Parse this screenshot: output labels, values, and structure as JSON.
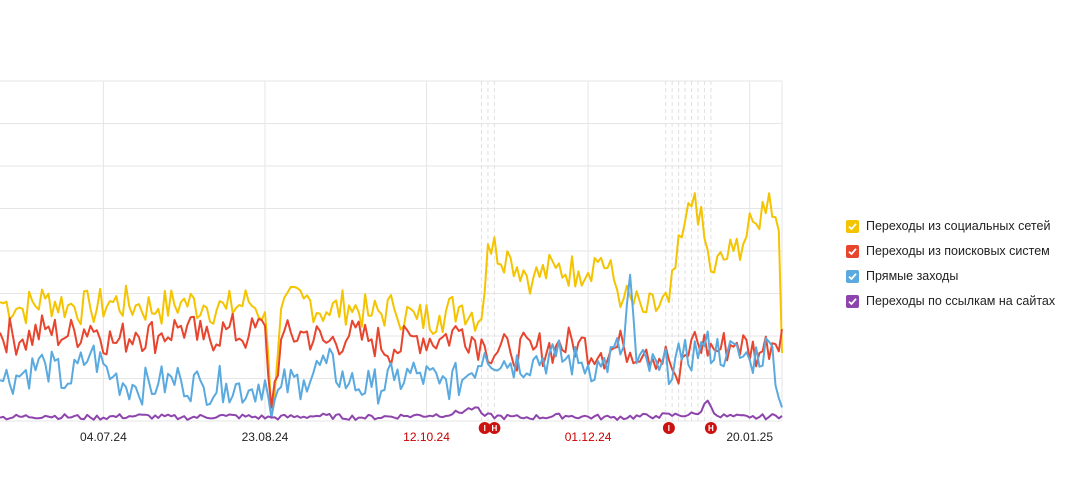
{
  "chart_data": {
    "type": "line",
    "x_range": [
      "2024-06-02",
      "2025-01-30"
    ],
    "ylim": [
      0,
      100
    ],
    "ylabel": "",
    "grid": true,
    "legend_position": "right",
    "xticks": [
      {
        "date": "2024-07-04",
        "label": "04.07.24",
        "color": "#222222"
      },
      {
        "date": "2024-08-23",
        "label": "23.08.24",
        "color": "#222222"
      },
      {
        "date": "2024-10-12",
        "label": "12.10.24",
        "color": "#cc0000"
      },
      {
        "date": "2024-12-01",
        "label": "01.12.24",
        "color": "#cc0000"
      },
      {
        "date": "2025-01-20",
        "label": "20.01.25",
        "color": "#222222"
      }
    ],
    "markers": [
      {
        "date": "2024-10-30",
        "text": "I"
      },
      {
        "date": "2024-11-02",
        "text": "H"
      },
      {
        "date": "2024-12-26",
        "text": "I"
      },
      {
        "date": "2025-01-08",
        "text": "H"
      }
    ],
    "series": [
      {
        "name": "Переходы из социальных сетей",
        "color": "#f5c400",
        "points": [
          [
            "2024-06-02",
            35
          ],
          [
            "2024-06-09",
            33
          ],
          [
            "2024-06-16",
            36
          ],
          [
            "2024-06-23",
            34
          ],
          [
            "2024-06-30",
            33
          ],
          [
            "2024-07-07",
            35
          ],
          [
            "2024-07-14",
            34
          ],
          [
            "2024-07-21",
            33
          ],
          [
            "2024-07-28",
            35
          ],
          [
            "2024-08-04",
            34
          ],
          [
            "2024-08-11",
            33
          ],
          [
            "2024-08-18",
            35
          ],
          [
            "2024-08-23",
            32
          ],
          [
            "2024-08-25",
            2
          ],
          [
            "2024-08-28",
            33
          ],
          [
            "2024-09-04",
            36
          ],
          [
            "2024-09-11",
            32
          ],
          [
            "2024-09-18",
            34
          ],
          [
            "2024-09-25",
            31
          ],
          [
            "2024-10-02",
            33
          ],
          [
            "2024-10-09",
            30
          ],
          [
            "2024-10-16",
            31
          ],
          [
            "2024-10-23",
            34
          ],
          [
            "2024-10-29",
            30
          ],
          [
            "2024-10-31",
            52
          ],
          [
            "2024-11-07",
            48
          ],
          [
            "2024-11-14",
            42
          ],
          [
            "2024-11-21",
            45
          ],
          [
            "2024-11-28",
            44
          ],
          [
            "2024-12-05",
            48
          ],
          [
            "2024-12-12",
            36
          ],
          [
            "2024-12-19",
            32
          ],
          [
            "2024-12-26",
            35
          ],
          [
            "2024-12-30",
            54
          ],
          [
            "2025-01-03",
            67
          ],
          [
            "2025-01-08",
            44
          ],
          [
            "2025-01-15",
            50
          ],
          [
            "2025-01-22",
            58
          ],
          [
            "2025-01-26",
            67
          ],
          [
            "2025-01-29",
            56
          ],
          [
            "2025-01-30",
            20
          ]
        ]
      },
      {
        "name": "Переходы из поисковых систем",
        "color": "#e8452e",
        "points": [
          [
            "2024-06-02",
            26
          ],
          [
            "2024-06-09",
            24
          ],
          [
            "2024-06-16",
            27
          ],
          [
            "2024-06-23",
            25
          ],
          [
            "2024-06-30",
            28
          ],
          [
            "2024-07-07",
            23
          ],
          [
            "2024-07-14",
            26
          ],
          [
            "2024-07-21",
            25
          ],
          [
            "2024-07-28",
            28
          ],
          [
            "2024-08-04",
            24
          ],
          [
            "2024-08-11",
            27
          ],
          [
            "2024-08-18",
            25
          ],
          [
            "2024-08-23",
            28
          ],
          [
            "2024-08-25",
            4
          ],
          [
            "2024-08-28",
            24
          ],
          [
            "2024-09-04",
            26
          ],
          [
            "2024-09-11",
            23
          ],
          [
            "2024-09-18",
            25
          ],
          [
            "2024-09-25",
            24
          ],
          [
            "2024-10-02",
            21
          ],
          [
            "2024-10-09",
            25
          ],
          [
            "2024-10-16",
            24
          ],
          [
            "2024-10-23",
            27
          ],
          [
            "2024-10-30",
            22
          ],
          [
            "2024-11-07",
            20
          ],
          [
            "2024-11-14",
            21
          ],
          [
            "2024-11-21",
            22
          ],
          [
            "2024-11-28",
            23
          ],
          [
            "2024-12-05",
            20
          ],
          [
            "2024-12-12",
            22
          ],
          [
            "2024-12-19",
            21
          ],
          [
            "2024-12-26",
            18
          ],
          [
            "2024-12-29",
            11
          ],
          [
            "2025-01-02",
            24
          ],
          [
            "2025-01-09",
            21
          ],
          [
            "2025-01-16",
            23
          ],
          [
            "2025-01-23",
            20
          ],
          [
            "2025-01-30",
            27
          ]
        ]
      },
      {
        "name": "Прямые заходы",
        "color": "#5aaae0",
        "points": [
          [
            "2024-06-02",
            12
          ],
          [
            "2024-06-09",
            14
          ],
          [
            "2024-06-16",
            17
          ],
          [
            "2024-06-23",
            11
          ],
          [
            "2024-06-30",
            20
          ],
          [
            "2024-07-07",
            13
          ],
          [
            "2024-07-14",
            10
          ],
          [
            "2024-07-21",
            11
          ],
          [
            "2024-07-28",
            12
          ],
          [
            "2024-08-04",
            10
          ],
          [
            "2024-08-11",
            11
          ],
          [
            "2024-08-18",
            9
          ],
          [
            "2024-08-23",
            12
          ],
          [
            "2024-08-25",
            1
          ],
          [
            "2024-08-28",
            10
          ],
          [
            "2024-09-04",
            12
          ],
          [
            "2024-09-11",
            17
          ],
          [
            "2024-09-18",
            11
          ],
          [
            "2024-09-25",
            10
          ],
          [
            "2024-10-02",
            12
          ],
          [
            "2024-10-09",
            14
          ],
          [
            "2024-10-16",
            11
          ],
          [
            "2024-10-23",
            12
          ],
          [
            "2024-10-30",
            20
          ],
          [
            "2024-11-07",
            17
          ],
          [
            "2024-11-14",
            18
          ],
          [
            "2024-11-21",
            19
          ],
          [
            "2024-11-28",
            17
          ],
          [
            "2024-12-05",
            16
          ],
          [
            "2024-12-12",
            22
          ],
          [
            "2024-12-14",
            43
          ],
          [
            "2024-12-16",
            17
          ],
          [
            "2024-12-23",
            15
          ],
          [
            "2024-12-30",
            18
          ],
          [
            "2025-01-06",
            22
          ],
          [
            "2025-01-13",
            20
          ],
          [
            "2025-01-20",
            18
          ],
          [
            "2025-01-27",
            22
          ],
          [
            "2025-01-30",
            4
          ]
        ]
      },
      {
        "name": "Переходы по ссылкам на сайтах",
        "color": "#8e44ad",
        "points": [
          [
            "2024-06-02",
            1
          ],
          [
            "2024-06-16",
            1.5
          ],
          [
            "2024-06-30",
            1
          ],
          [
            "2024-07-14",
            1.5
          ],
          [
            "2024-07-28",
            1
          ],
          [
            "2024-08-11",
            1.5
          ],
          [
            "2024-08-25",
            1
          ],
          [
            "2024-09-08",
            1.5
          ],
          [
            "2024-09-22",
            1
          ],
          [
            "2024-10-06",
            1.5
          ],
          [
            "2024-10-20",
            2
          ],
          [
            "2024-10-27",
            4
          ],
          [
            "2024-10-30",
            1.5
          ],
          [
            "2024-11-10",
            1
          ],
          [
            "2024-11-24",
            1.5
          ],
          [
            "2024-12-08",
            1
          ],
          [
            "2024-12-22",
            1.5
          ],
          [
            "2025-01-04",
            2
          ],
          [
            "2025-01-07",
            6
          ],
          [
            "2025-01-10",
            1.5
          ],
          [
            "2025-01-20",
            1
          ],
          [
            "2025-01-30",
            1.5
          ]
        ]
      }
    ]
  },
  "legend": {
    "items": [
      {
        "label": "Переходы из социальных сетей",
        "color": "#f5c400"
      },
      {
        "label": "Переходы из поисковых систем",
        "color": "#e8452e"
      },
      {
        "label": "Прямые заходы",
        "color": "#5aaae0"
      },
      {
        "label": "Переходы по ссылкам на сайтах",
        "color": "#8e44ad"
      }
    ]
  }
}
